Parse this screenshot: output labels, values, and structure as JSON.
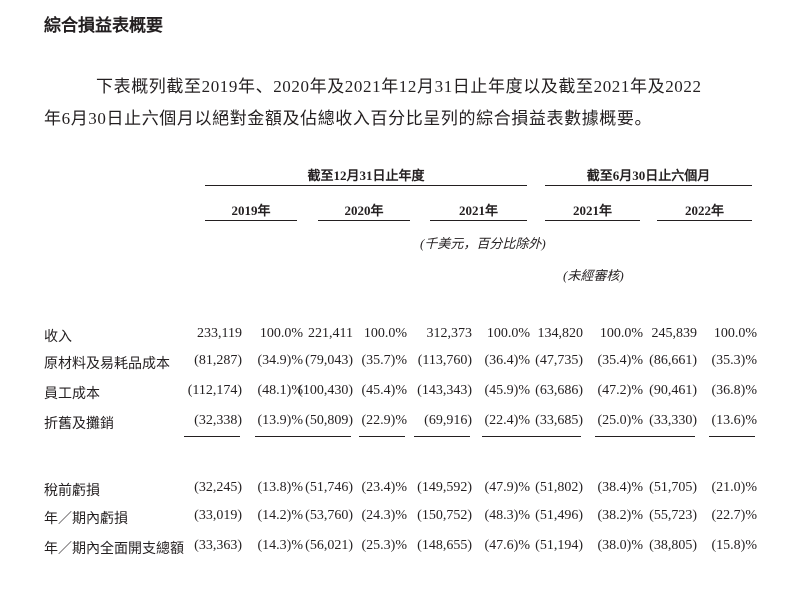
{
  "title": "綜合損益表概要",
  "intro": [
    "下表概列截至2019年、2020年及2021年12月31日止年度以及截至2021年及2022",
    "年6月30日止六個月以絕對金額及佔總收入百分比呈列的綜合損益表數據概要。"
  ],
  "table": {
    "group_headers": [
      "截至12月31日止年度",
      "截至6月30日止六個月"
    ],
    "years": [
      "2019年",
      "2020年",
      "2021年",
      "2021年",
      "2022年"
    ],
    "unit_note": "(千美元，百分比除外)",
    "unaudited_note": "(未經審核)",
    "rows": [
      {
        "label": "收入",
        "values": [
          "233,119",
          "100.0%",
          "221,411",
          "100.0%",
          "312,373",
          "100.0%",
          "134,820",
          "100.0%",
          "245,839",
          "100.0%"
        ]
      },
      {
        "label": "原材料及易耗品成本",
        "values": [
          "(81,287)",
          "(34.9)%",
          "(79,043)",
          "(35.7)%",
          "(113,760)",
          "(36.4)%",
          "(47,735)",
          "(35.4)%",
          "(86,661)",
          "(35.3)%"
        ]
      },
      {
        "label": "員工成本",
        "values": [
          "(112,174)",
          "(48.1)%",
          "(100,430)",
          "(45.4)%",
          "(143,343)",
          "(45.9)%",
          "(63,686)",
          "(47.2)%",
          "(90,461)",
          "(36.8)%"
        ]
      },
      {
        "label": "折舊及攤銷",
        "values": [
          "(32,338)",
          "(13.9)%",
          "(50,809)",
          "(22.9)%",
          "(69,916)",
          "(22.4)%",
          "(33,685)",
          "(25.0)%",
          "(33,330)",
          "(13.6)%"
        ]
      },
      {
        "label": "稅前虧損",
        "values": [
          "(32,245)",
          "(13.8)%",
          "(51,746)",
          "(23.4)%",
          "(149,592)",
          "(47.9)%",
          "(51,802)",
          "(38.4)%",
          "(51,705)",
          "(21.0)%"
        ]
      },
      {
        "label": "年／期內虧損",
        "values": [
          "(33,019)",
          "(14.2)%",
          "(53,760)",
          "(24.3)%",
          "(150,752)",
          "(48.3)%",
          "(51,496)",
          "(38.2)%",
          "(55,723)",
          "(22.7)%"
        ]
      },
      {
        "label": "年／期內全面開支總額",
        "values": [
          "(33,363)",
          "(14.3)%",
          "(56,021)",
          "(25.3)%",
          "(148,655)",
          "(47.6)%",
          "(51,194)",
          "(38.0)%",
          "(38,805)",
          "(15.8)%"
        ]
      }
    ]
  }
}
